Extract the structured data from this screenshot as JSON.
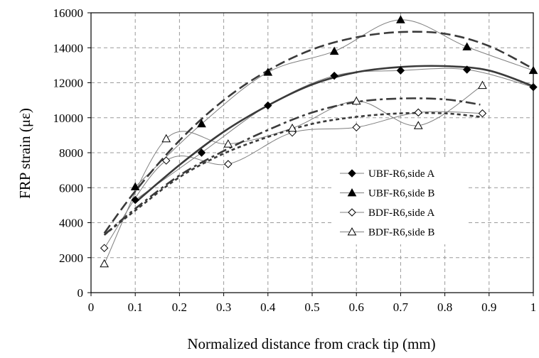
{
  "chart_data": {
    "type": "scatter",
    "title": "",
    "xlabel": "Normalized distance from crack tip (mm)",
    "ylabel": "FRP strain (με)",
    "xlim": [
      0,
      1
    ],
    "ylim": [
      0,
      16000
    ],
    "xticks": [
      0,
      0.1,
      0.2,
      0.3,
      0.4,
      0.5,
      0.6,
      0.7,
      0.8,
      0.9,
      1
    ],
    "yticks": [
      0,
      2000,
      4000,
      6000,
      8000,
      10000,
      12000,
      14000,
      16000
    ],
    "grid": true,
    "legend_position": "right-center",
    "series": [
      {
        "name": "UBF-R6,side A",
        "marker": "diamond-filled",
        "x": [
          0.1,
          0.25,
          0.4,
          0.55,
          0.7,
          0.85,
          1.0
        ],
        "y": [
          5300,
          8000,
          10700,
          12400,
          12700,
          12750,
          11750
        ],
        "fit": {
          "x": [
            0.1,
            0.2,
            0.3,
            0.4,
            0.5,
            0.6,
            0.7,
            0.8,
            0.9,
            1.0
          ],
          "y": [
            5150,
            7300,
            9200,
            10700,
            11900,
            12600,
            12900,
            12950,
            12700,
            11800
          ],
          "style": "solid"
        }
      },
      {
        "name": "UBF-R6,side B",
        "marker": "triangle-filled",
        "x": [
          0.1,
          0.25,
          0.4,
          0.55,
          0.7,
          0.85,
          1.0
        ],
        "y": [
          6050,
          9650,
          12600,
          13800,
          15600,
          14050,
          12700
        ],
        "fit": {
          "x": [
            0.03,
            0.1,
            0.2,
            0.3,
            0.4,
            0.5,
            0.6,
            0.7,
            0.8,
            0.9,
            1.0
          ],
          "y": [
            3400,
            5800,
            8700,
            11000,
            12700,
            13900,
            14600,
            14900,
            14800,
            14100,
            12800
          ],
          "style": "long-dash"
        }
      },
      {
        "name": "BDF-R6,side A",
        "marker": "diamond-open",
        "x": [
          0.03,
          0.17,
          0.31,
          0.455,
          0.6,
          0.74,
          0.885
        ],
        "y": [
          2550,
          7550,
          7350,
          9150,
          9450,
          10300,
          10250
        ],
        "fit": {
          "x": [
            0.03,
            0.1,
            0.2,
            0.3,
            0.4,
            0.5,
            0.6,
            0.7,
            0.8,
            0.88
          ],
          "y": [
            3300,
            4700,
            6600,
            7950,
            8900,
            9650,
            10050,
            10250,
            10250,
            10050
          ],
          "style": "short-dash"
        }
      },
      {
        "name": "BDF-R6,side B",
        "marker": "triangle-open",
        "x": [
          0.03,
          0.17,
          0.31,
          0.455,
          0.6,
          0.74,
          0.885
        ],
        "y": [
          1650,
          8800,
          8500,
          9400,
          10950,
          9550,
          11850
        ],
        "fit": {
          "x": [
            0.03,
            0.1,
            0.2,
            0.3,
            0.4,
            0.5,
            0.6,
            0.7,
            0.8,
            0.88
          ],
          "y": [
            3300,
            4800,
            6700,
            8100,
            9300,
            10300,
            10900,
            11100,
            11050,
            10750
          ],
          "style": "dash-dot"
        }
      }
    ]
  },
  "colors": {
    "marker": "#000000",
    "connector": "#7f7f7f",
    "fit": "#3a3a3a",
    "grid": "#9a9a9a",
    "background": "#ffffff"
  }
}
